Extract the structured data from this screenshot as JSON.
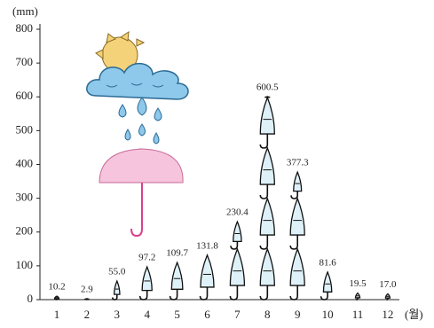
{
  "chart_data": {
    "type": "pictograph",
    "y_label": "(mm)",
    "x_label": "(월)",
    "categories": [
      "1",
      "2",
      "3",
      "4",
      "5",
      "6",
      "7",
      "8",
      "9",
      "10",
      "11",
      "12"
    ],
    "values": [
      10.2,
      2.9,
      55.0,
      97.2,
      109.7,
      131.8,
      230.4,
      600.5,
      377.3,
      81.6,
      19.5,
      17.0
    ],
    "value_labels": [
      "10.2",
      "2.9",
      "55.0",
      "97.2",
      "109.7",
      "131.8",
      "230.4",
      "600.5",
      "377.3",
      "81.6",
      "19.5",
      "17.0"
    ],
    "color": "#dff1f8",
    "ylim": [
      0,
      800
    ],
    "yticks": [
      0,
      100,
      200,
      300,
      400,
      500,
      600,
      700,
      800
    ]
  }
}
